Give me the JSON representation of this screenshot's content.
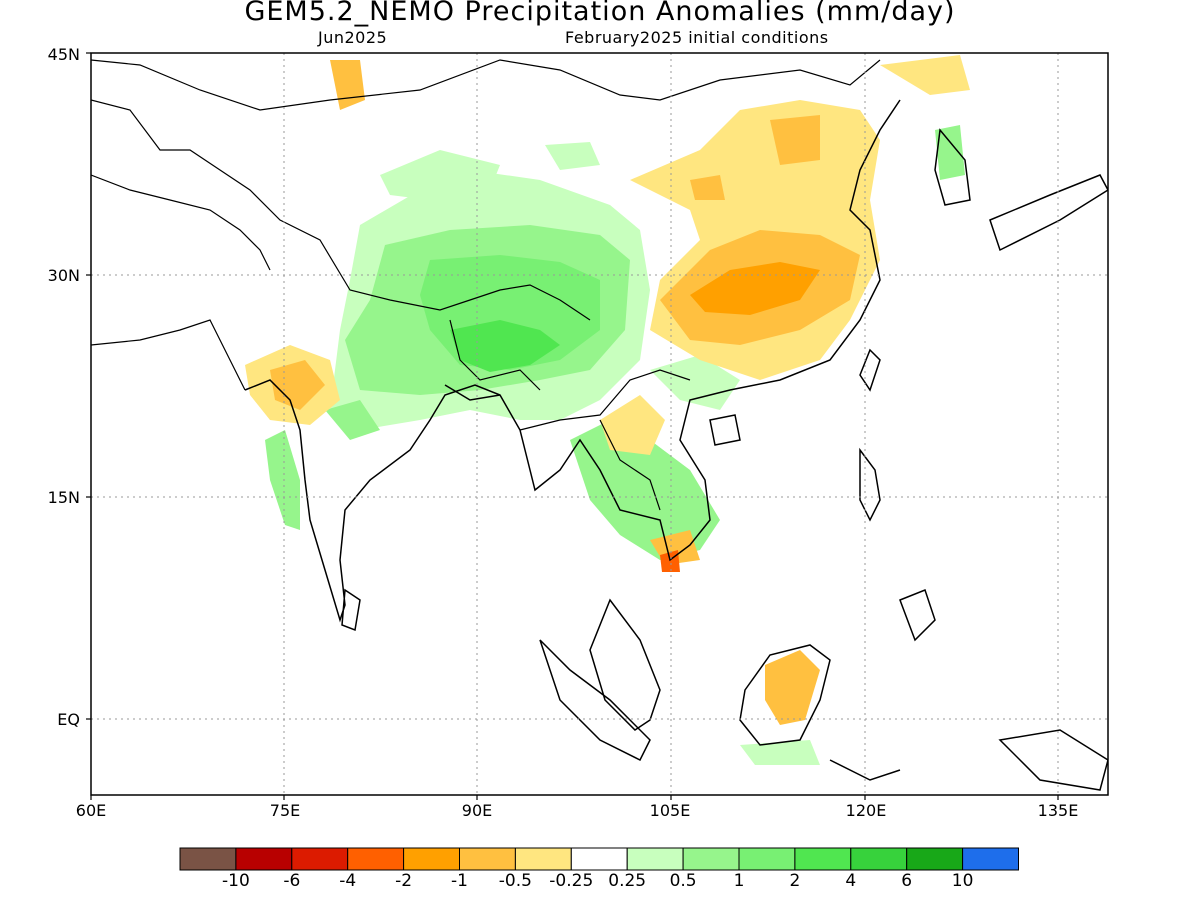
{
  "header": {
    "title": "GEM5.2_NEMO Precipitation Anomalies (mm/day)",
    "valid_month": "Jun2025",
    "init": "February2025 initial conditions"
  },
  "axes": {
    "lat_labels": [
      "45N",
      "30N",
      "15N",
      "EQ"
    ],
    "lon_labels": [
      "60E",
      "75E",
      "90E",
      "105E",
      "120E",
      "135E"
    ]
  },
  "map_extent": {
    "lon": [
      60,
      140
    ],
    "lat": [
      -5,
      45
    ]
  },
  "colorbar": {
    "colors": [
      "#7a5345",
      "#b80000",
      "#dc1b00",
      "#ff6000",
      "#ffa000",
      "#ffc040",
      "#ffe680",
      "#ffffff",
      "#c8ffbe",
      "#96f58c",
      "#78f073",
      "#50e650",
      "#37d23c",
      "#18a818",
      "#1e6eeb"
    ],
    "labels": [
      "-10",
      "-6",
      "-4",
      "-2",
      "-1",
      "-0.5",
      "-0.25",
      "0.25",
      "0.5",
      "1",
      "2",
      "4",
      "6",
      "10"
    ]
  }
}
